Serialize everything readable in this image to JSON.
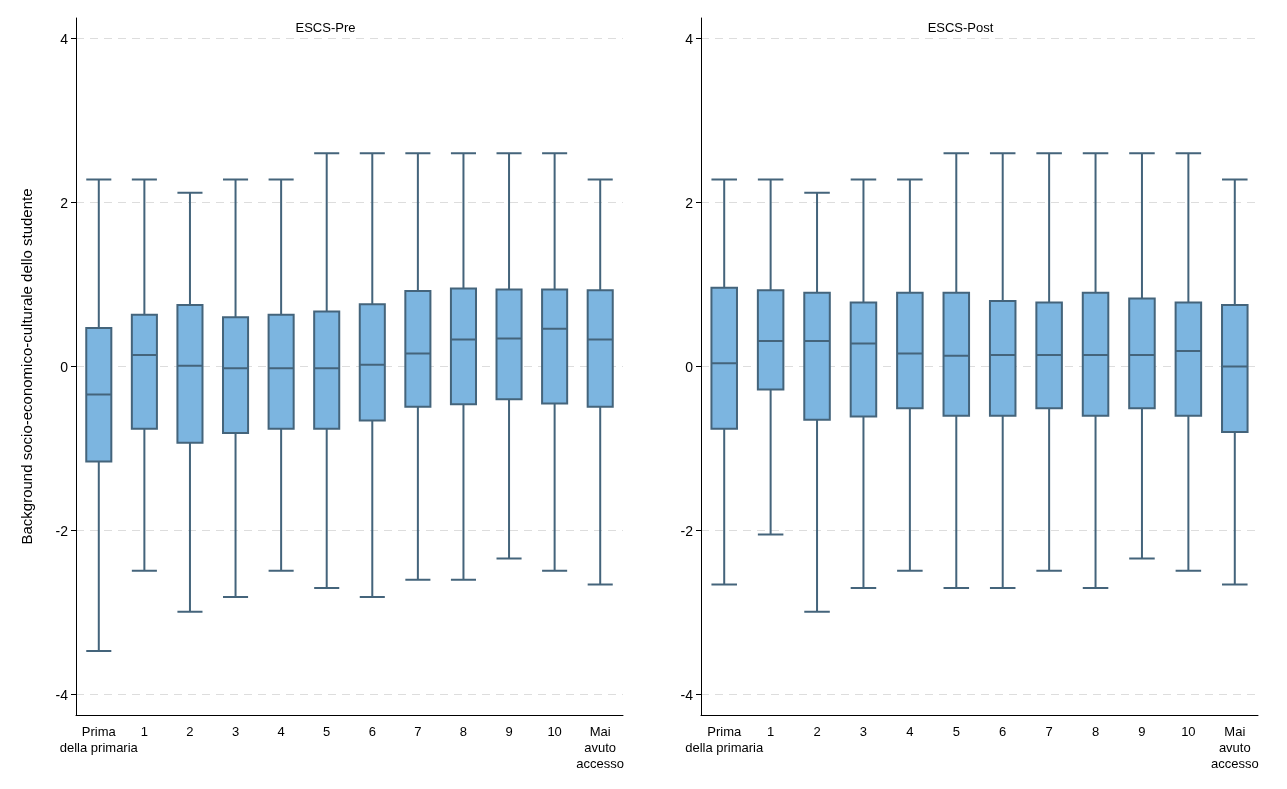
{
  "chart_data": [
    {
      "type": "box",
      "title": "ESCS-Pre",
      "ylabel": "Background socio-economico-culturale dello studente",
      "categories": [
        "Prima\ndella primaria",
        "1",
        "2",
        "3",
        "4",
        "5",
        "6",
        "7",
        "8",
        "9",
        "10",
        "Mai\navuto\naccesso"
      ],
      "color": "#7cb5e0",
      "ylim": [
        -4.25,
        4.25
      ],
      "yticks": [
        -4,
        -2,
        0,
        2,
        4
      ],
      "grid": "y",
      "boxes": [
        {
          "low": -3.47,
          "q1": -1.16,
          "median": -0.34,
          "q3": 0.47,
          "high": 2.28
        },
        {
          "low": -2.49,
          "q1": -0.76,
          "median": 0.14,
          "q3": 0.63,
          "high": 2.28
        },
        {
          "low": -2.99,
          "q1": -0.93,
          "median": 0.01,
          "q3": 0.75,
          "high": 2.12
        },
        {
          "low": -2.81,
          "q1": -0.81,
          "median": -0.02,
          "q3": 0.6,
          "high": 2.28
        },
        {
          "low": -2.49,
          "q1": -0.76,
          "median": -0.02,
          "q3": 0.63,
          "high": 2.28
        },
        {
          "low": -2.7,
          "q1": -0.76,
          "median": -0.02,
          "q3": 0.67,
          "high": 2.6
        },
        {
          "low": -2.81,
          "q1": -0.66,
          "median": 0.02,
          "q3": 0.76,
          "high": 2.6
        },
        {
          "low": -2.6,
          "q1": -0.49,
          "median": 0.16,
          "q3": 0.92,
          "high": 2.6
        },
        {
          "low": -2.6,
          "q1": -0.46,
          "median": 0.33,
          "q3": 0.95,
          "high": 2.6
        },
        {
          "low": -2.34,
          "q1": -0.4,
          "median": 0.34,
          "q3": 0.94,
          "high": 2.6
        },
        {
          "low": -2.49,
          "q1": -0.45,
          "median": 0.46,
          "q3": 0.94,
          "high": 2.6
        },
        {
          "low": -2.66,
          "q1": -0.49,
          "median": 0.33,
          "q3": 0.93,
          "high": 2.28
        }
      ]
    },
    {
      "type": "box",
      "title": "ESCS-Post",
      "categories": [
        "Prima\ndella primaria",
        "1",
        "2",
        "3",
        "4",
        "5",
        "6",
        "7",
        "8",
        "9",
        "10",
        "Mai\navuto\naccesso"
      ],
      "color": "#7cb5e0",
      "ylim": [
        -4.25,
        4.25
      ],
      "yticks": [
        -4,
        -2,
        0,
        2,
        4
      ],
      "grid": "y",
      "boxes": [
        {
          "low": -2.66,
          "q1": -0.76,
          "median": 0.04,
          "q3": 0.96,
          "high": 2.28
        },
        {
          "low": -2.05,
          "q1": -0.28,
          "median": 0.31,
          "q3": 0.93,
          "high": 2.28
        },
        {
          "low": -2.99,
          "q1": -0.65,
          "median": 0.31,
          "q3": 0.9,
          "high": 2.12
        },
        {
          "low": -2.7,
          "q1": -0.61,
          "median": 0.28,
          "q3": 0.78,
          "high": 2.28
        },
        {
          "low": -2.49,
          "q1": -0.51,
          "median": 0.16,
          "q3": 0.9,
          "high": 2.28
        },
        {
          "low": -2.7,
          "q1": -0.6,
          "median": 0.13,
          "q3": 0.9,
          "high": 2.6
        },
        {
          "low": -2.7,
          "q1": -0.6,
          "median": 0.14,
          "q3": 0.8,
          "high": 2.6
        },
        {
          "low": -2.49,
          "q1": -0.51,
          "median": 0.14,
          "q3": 0.78,
          "high": 2.6
        },
        {
          "low": -2.7,
          "q1": -0.6,
          "median": 0.14,
          "q3": 0.9,
          "high": 2.6
        },
        {
          "low": -2.34,
          "q1": -0.51,
          "median": 0.14,
          "q3": 0.83,
          "high": 2.6
        },
        {
          "low": -2.49,
          "q1": -0.6,
          "median": 0.19,
          "q3": 0.78,
          "high": 2.6
        },
        {
          "low": -2.66,
          "q1": -0.8,
          "median": 0.0,
          "q3": 0.75,
          "high": 2.28
        }
      ]
    }
  ]
}
